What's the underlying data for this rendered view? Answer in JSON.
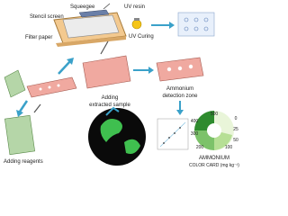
{
  "labels": {
    "squeegee": "Squeegee",
    "uv_resin": "UV resin",
    "stencil_screen": "Stencil screen",
    "filter_paper": "Filter paper",
    "uv_curing": "UV Curing",
    "adding_sample": [
      "Adding",
      "extracted sample"
    ],
    "detection_zone": [
      "Ammonium",
      "detection zone"
    ],
    "adding_reagents": "Adding reagents"
  },
  "color_card": {
    "title": "AMMONIUM",
    "subtitle": "COLOR CARD (mg kg⁻¹)",
    "levels": [
      "500",
      "0",
      "400",
      "25",
      "300",
      "50",
      "200",
      "100"
    ]
  }
}
